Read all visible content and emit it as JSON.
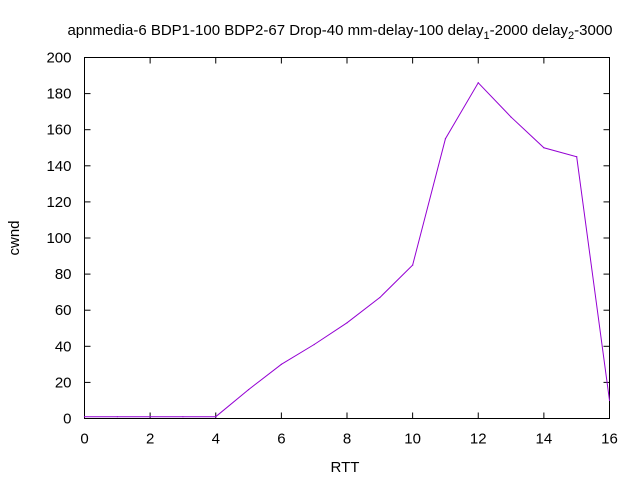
{
  "chart_data": {
    "type": "line",
    "title": {
      "segments": [
        {
          "text": "apnmedia-6 BDP1-100 BDP2-67 Drop-40 mm-delay-100 delay",
          "sub": false
        },
        {
          "text": "1",
          "sub": true
        },
        {
          "text": "-2000 delay",
          "sub": false
        },
        {
          "text": "2",
          "sub": true
        },
        {
          "text": "-3000",
          "sub": false
        }
      ]
    },
    "xlabel": "RTT",
    "ylabel": "cwnd",
    "xlim": [
      0,
      16
    ],
    "ylim": [
      0,
      200
    ],
    "x_ticks": [
      0,
      2,
      4,
      6,
      8,
      10,
      12,
      14,
      16
    ],
    "y_ticks": [
      0,
      20,
      40,
      60,
      80,
      100,
      120,
      140,
      160,
      180,
      200
    ],
    "grid": false,
    "series": [
      {
        "color": "#9400d3",
        "x": [
          0,
          1,
          2,
          3,
          4,
          5,
          6,
          7,
          8,
          9,
          10,
          11,
          12,
          13,
          14,
          15,
          16
        ],
        "y": [
          1,
          1,
          1,
          1,
          1,
          16,
          30,
          41,
          53,
          67,
          85,
          155,
          186,
          167,
          150,
          145,
          10
        ]
      }
    ]
  }
}
